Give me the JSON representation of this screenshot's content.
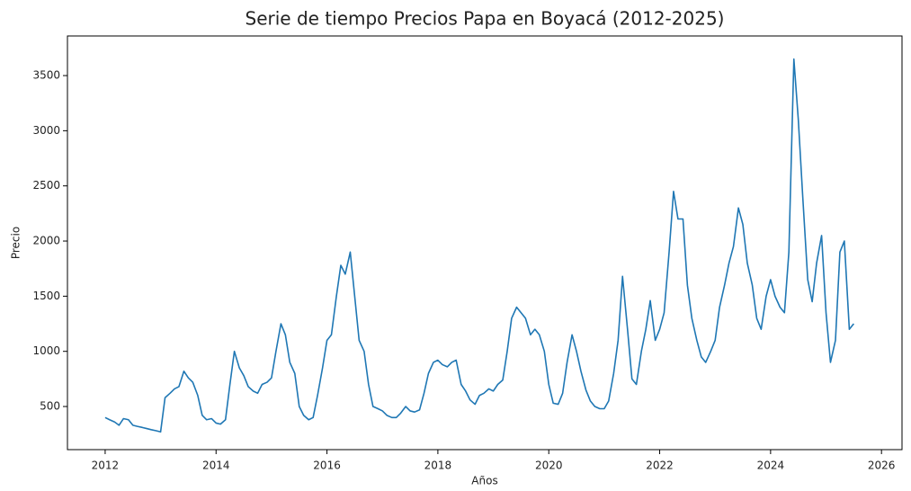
{
  "chart_data": {
    "type": "line",
    "title": "Serie de tiempo Precios Papa en Boyacá (2012-2025)",
    "x_label": "Años",
    "y_label": "Precio",
    "xlim": [
      2011.32,
      2026.37
    ],
    "xticks": [
      2012,
      2014,
      2016,
      2018,
      2020,
      2022,
      2024,
      2026
    ],
    "ylim": [
      109,
      3859
    ],
    "yticks": [
      500,
      1000,
      1500,
      2000,
      2500,
      3000,
      3500
    ],
    "grid": false,
    "x": [
      2012.0,
      2012.08,
      2012.17,
      2012.25,
      2012.33,
      2012.42,
      2012.5,
      2012.58,
      2012.67,
      2012.75,
      2012.83,
      2012.92,
      2013.0,
      2013.08,
      2013.17,
      2013.25,
      2013.33,
      2013.42,
      2013.5,
      2013.58,
      2013.67,
      2013.75,
      2013.83,
      2013.92,
      2014.0,
      2014.08,
      2014.17,
      2014.25,
      2014.33,
      2014.42,
      2014.5,
      2014.58,
      2014.67,
      2014.75,
      2014.83,
      2014.92,
      2015.0,
      2015.08,
      2015.17,
      2015.25,
      2015.33,
      2015.42,
      2015.5,
      2015.58,
      2015.67,
      2015.75,
      2015.83,
      2015.92,
      2016.0,
      2016.08,
      2016.17,
      2016.25,
      2016.33,
      2016.42,
      2016.5,
      2016.58,
      2016.67,
      2016.75,
      2016.83,
      2016.92,
      2017.0,
      2017.08,
      2017.17,
      2017.25,
      2017.33,
      2017.42,
      2017.5,
      2017.58,
      2017.67,
      2017.75,
      2017.83,
      2017.92,
      2018.0,
      2018.08,
      2018.17,
      2018.25,
      2018.33,
      2018.42,
      2018.5,
      2018.58,
      2018.67,
      2018.75,
      2018.83,
      2018.92,
      2019.0,
      2019.08,
      2019.17,
      2019.25,
      2019.33,
      2019.42,
      2019.5,
      2019.58,
      2019.67,
      2019.75,
      2019.83,
      2019.92,
      2020.0,
      2020.08,
      2020.17,
      2020.25,
      2020.33,
      2020.42,
      2020.5,
      2020.58,
      2020.67,
      2020.75,
      2020.83,
      2020.92,
      2021.0,
      2021.08,
      2021.17,
      2021.25,
      2021.33,
      2021.42,
      2021.5,
      2021.58,
      2021.67,
      2021.75,
      2021.83,
      2021.92,
      2022.0,
      2022.08,
      2022.17,
      2022.25,
      2022.33,
      2022.42,
      2022.5,
      2022.58,
      2022.67,
      2022.75,
      2022.83,
      2022.92,
      2023.0,
      2023.08,
      2023.17,
      2023.25,
      2023.33,
      2023.42,
      2023.5,
      2023.58,
      2023.67,
      2023.75,
      2023.83,
      2023.92,
      2024.0,
      2024.08,
      2024.17,
      2024.25,
      2024.33,
      2024.42,
      2024.5,
      2024.58,
      2024.67,
      2024.75,
      2024.83,
      2024.92,
      2025.0,
      2025.08,
      2025.17,
      2025.25,
      2025.33,
      2025.42,
      2025.5
    ],
    "series": [
      {
        "color": "#1f77b4",
        "values": [
          400,
          380,
          360,
          330,
          390,
          380,
          330,
          320,
          310,
          300,
          290,
          280,
          270,
          580,
          620,
          660,
          680,
          820,
          760,
          720,
          600,
          420,
          380,
          390,
          350,
          340,
          380,
          700,
          1000,
          850,
          780,
          680,
          640,
          620,
          700,
          720,
          760,
          1000,
          1250,
          1150,
          900,
          800,
          500,
          420,
          380,
          400,
          600,
          850,
          1100,
          1150,
          1500,
          1780,
          1700,
          1900,
          1500,
          1100,
          1000,
          700,
          500,
          480,
          460,
          420,
          400,
          400,
          440,
          500,
          460,
          450,
          470,
          620,
          800,
          900,
          920,
          880,
          860,
          900,
          920,
          700,
          640,
          560,
          520,
          600,
          620,
          660,
          640,
          700,
          740,
          1000,
          1300,
          1400,
          1350,
          1300,
          1150,
          1200,
          1150,
          1000,
          700,
          530,
          520,
          620,
          900,
          1150,
          1000,
          820,
          650,
          550,
          500,
          480,
          480,
          550,
          800,
          1100,
          1680,
          1200,
          750,
          700,
          1000,
          1200,
          1460,
          1100,
          1200,
          1350,
          1900,
          2450,
          2200,
          2200,
          1600,
          1300,
          1100,
          950,
          900,
          1000,
          1100,
          1400,
          1600,
          1800,
          1950,
          2300,
          2150,
          1800,
          1600,
          1300,
          1200,
          1500,
          1650,
          1500,
          1400,
          1350,
          1900,
          3650,
          3100,
          2400,
          1650,
          1450,
          1800,
          2050,
          1350,
          900,
          1100,
          1900,
          2000,
          1200,
          1250
        ]
      }
    ]
  }
}
